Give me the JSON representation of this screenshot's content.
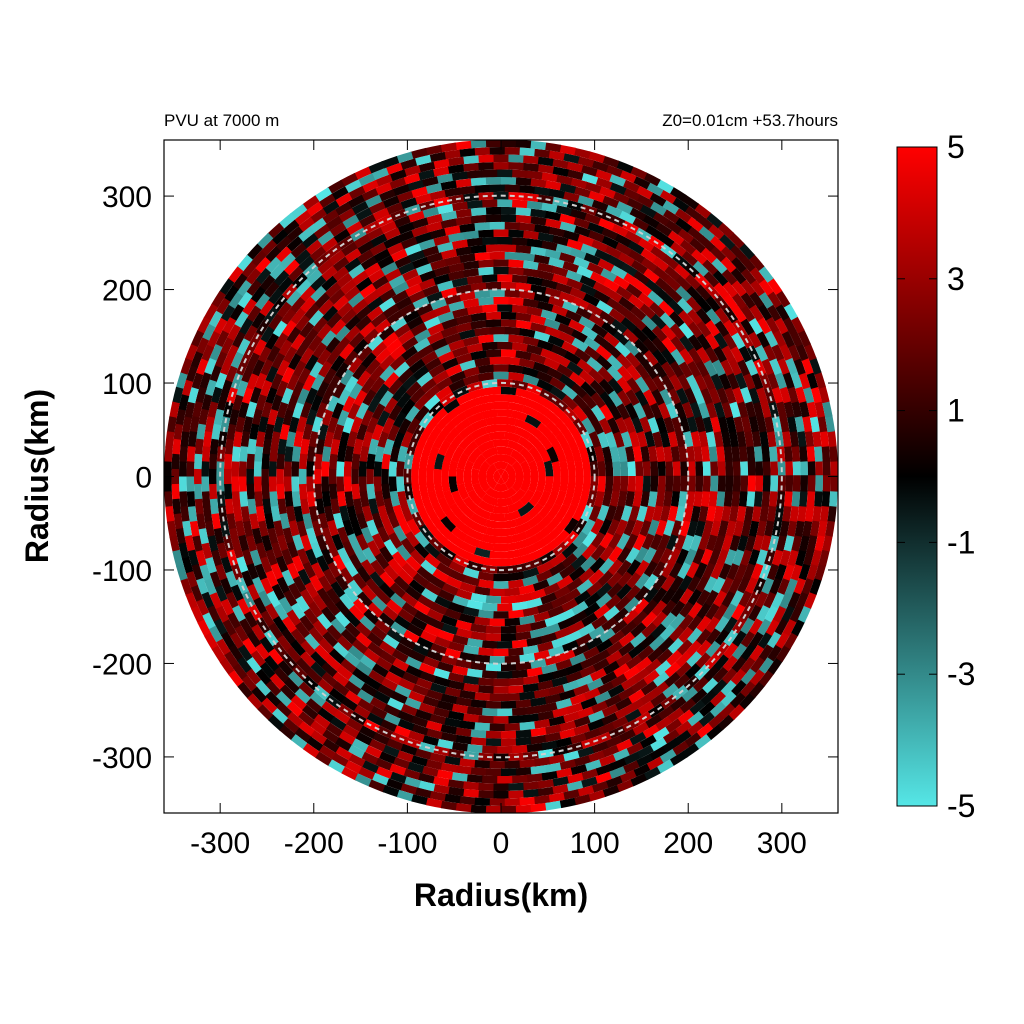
{
  "header": {
    "left": "PVU at  7000 m",
    "right": "Z0=0.01cm  +53.7hours"
  },
  "chart_data": {
    "type": "heatmap",
    "polar_domain": true,
    "xlabel": "Radius(km)",
    "ylabel": "Radius(km)",
    "xlim": [
      -360,
      360
    ],
    "ylim": [
      -360,
      360
    ],
    "domain_radius_km": 360,
    "xticks": [
      -300,
      -200,
      -100,
      0,
      100,
      200,
      300
    ],
    "yticks": [
      -300,
      -200,
      -100,
      0,
      100,
      200,
      300
    ],
    "reference_circles_km": [
      100,
      200,
      300
    ],
    "grid": false,
    "colorbar": {
      "min": -5,
      "max": 5,
      "ticks": [
        5,
        3,
        1,
        -1,
        -3,
        -5
      ],
      "colors": {
        "low": "#55e6e6",
        "mid": "#000000",
        "high": "#ff0000"
      }
    },
    "field_description_regions": [
      {
        "r_range_km": [
          0,
          100
        ],
        "typical_value": 5
      },
      {
        "r_range_km": [
          100,
          360
        ],
        "value_range": [
          -5,
          5
        ]
      }
    ]
  }
}
